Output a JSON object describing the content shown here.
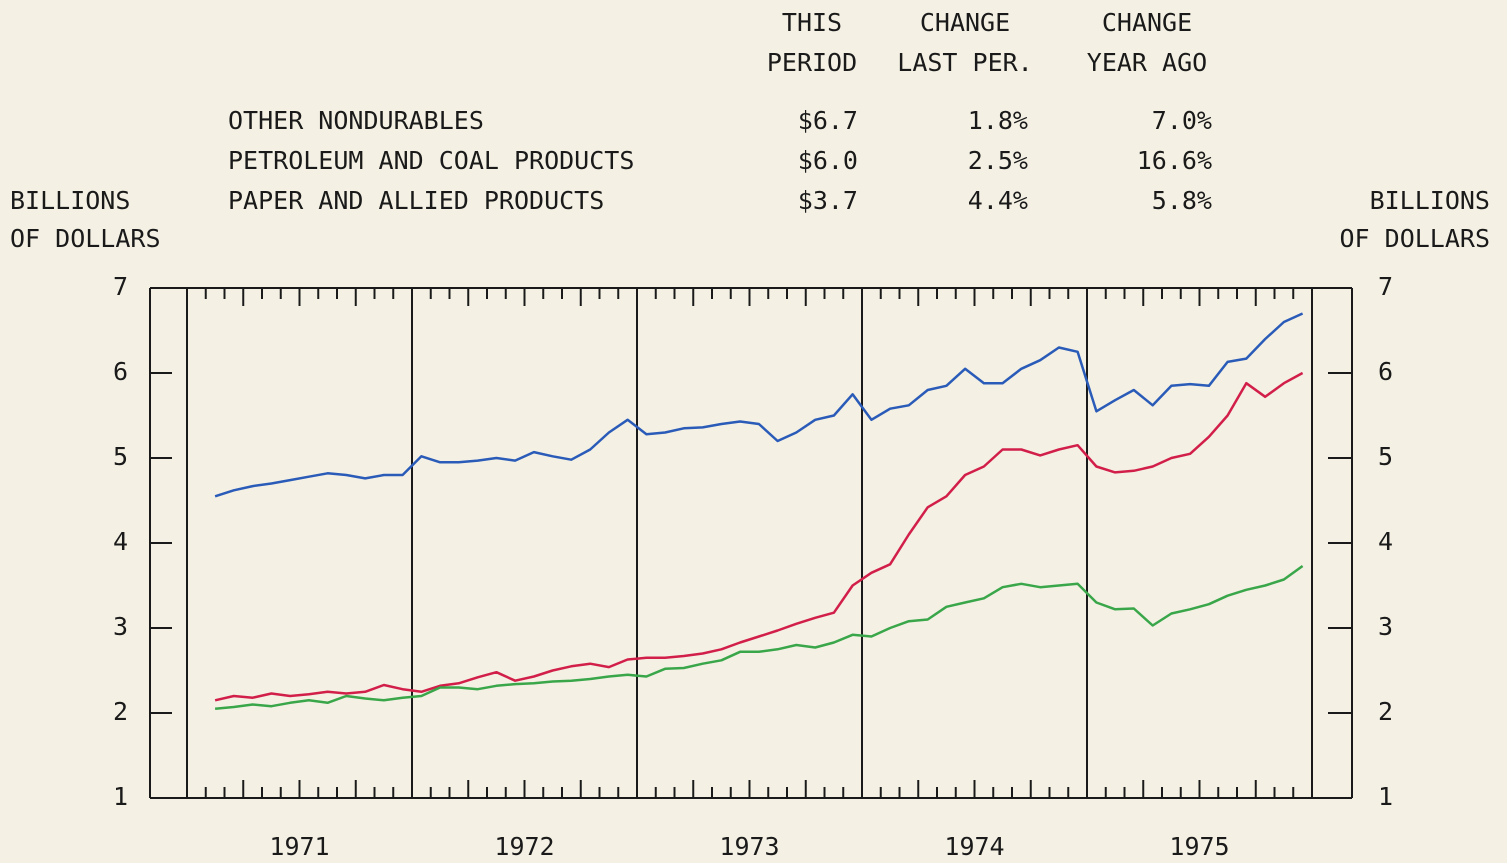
{
  "chart_data": {
    "type": "line",
    "table": {
      "columns": [
        [
          "THIS",
          "PERIOD"
        ],
        [
          "CHANGE",
          "LAST PER."
        ],
        [
          "CHANGE",
          "YEAR AGO"
        ]
      ],
      "rows": [
        [
          "$6.7",
          "1.8%",
          "7.0%"
        ],
        [
          "$6.0",
          "2.5%",
          "16.6%"
        ],
        [
          "$3.7",
          "4.4%",
          "5.8%"
        ]
      ]
    },
    "y_label": [
      "BILLIONS",
      "OF DOLLARS"
    ],
    "y2_label": [
      "BILLIONS",
      "OF DOLLARS"
    ],
    "xlim": [
      1971,
      1976
    ],
    "xticks": [
      {
        "value": 1971.5,
        "label": "1971"
      },
      {
        "value": 1972.5,
        "label": "1972"
      },
      {
        "value": 1973.5,
        "label": "1973"
      },
      {
        "value": 1974.5,
        "label": "1974"
      },
      {
        "value": 1975.5,
        "label": "1975"
      }
    ],
    "xgrid": [
      1972,
      1973,
      1974,
      1975
    ],
    "ylim": [
      1,
      7
    ],
    "yticks": [
      1,
      2,
      3,
      4,
      5,
      6,
      7
    ],
    "y2lim": [
      1,
      7
    ],
    "y2ticks": [
      1,
      2,
      3,
      4,
      5,
      6,
      7
    ],
    "x": [
      1971.125,
      1971.208,
      1971.292,
      1971.375,
      1971.458,
      1971.542,
      1971.625,
      1971.708,
      1971.792,
      1971.875,
      1971.958,
      1972.042,
      1972.125,
      1972.208,
      1972.292,
      1972.375,
      1972.458,
      1972.542,
      1972.625,
      1972.708,
      1972.792,
      1972.875,
      1972.958,
      1973.042,
      1973.125,
      1973.208,
      1973.292,
      1973.375,
      1973.458,
      1973.542,
      1973.625,
      1973.708,
      1973.792,
      1973.875,
      1973.958,
      1974.042,
      1974.125,
      1974.208,
      1974.292,
      1974.375,
      1974.458,
      1974.542,
      1974.625,
      1974.708,
      1974.792,
      1974.875,
      1974.958,
      1975.042,
      1975.125,
      1975.208,
      1975.292,
      1975.375,
      1975.458,
      1975.542,
      1975.625,
      1975.708,
      1975.792,
      1975.875,
      1975.958
    ],
    "series": [
      {
        "name": "OTHER NONDURABLES",
        "color": "#2a5bb8",
        "values": [
          4.55,
          4.62,
          4.67,
          4.7,
          4.74,
          4.78,
          4.82,
          4.8,
          4.76,
          4.8,
          4.8,
          5.02,
          4.95,
          4.95,
          4.97,
          5.0,
          4.97,
          5.07,
          5.02,
          4.98,
          5.1,
          5.3,
          5.45,
          5.28,
          5.3,
          5.35,
          5.36,
          5.4,
          5.43,
          5.4,
          5.2,
          5.3,
          5.45,
          5.5,
          5.75,
          5.45,
          5.58,
          5.62,
          5.8,
          5.85,
          6.05,
          5.88,
          5.88,
          6.05,
          6.15,
          6.3,
          6.25,
          5.55,
          5.68,
          5.8,
          5.62,
          5.85,
          5.87,
          5.85,
          6.13,
          6.17,
          6.4,
          6.6,
          6.7
        ]
      },
      {
        "name": "PETROLEUM AND COAL PRODUCTS",
        "color": "#d21f4a",
        "values": [
          2.15,
          2.2,
          2.18,
          2.23,
          2.2,
          2.22,
          2.25,
          2.23,
          2.25,
          2.33,
          2.28,
          2.25,
          2.32,
          2.35,
          2.42,
          2.48,
          2.38,
          2.43,
          2.5,
          2.55,
          2.58,
          2.54,
          2.63,
          2.65,
          2.65,
          2.67,
          2.7,
          2.75,
          2.83,
          2.9,
          2.97,
          3.05,
          3.12,
          3.18,
          3.5,
          3.65,
          3.75,
          4.1,
          4.42,
          4.55,
          4.8,
          4.9,
          5.1,
          5.1,
          5.03,
          5.1,
          5.15,
          4.9,
          4.83,
          4.85,
          4.9,
          5.0,
          5.05,
          5.25,
          5.5,
          5.88,
          5.72,
          5.88,
          6.0
        ]
      },
      {
        "name": "PAPER AND ALLIED PRODUCTS",
        "color": "#3aa64a",
        "values": [
          2.05,
          2.07,
          2.1,
          2.08,
          2.12,
          2.15,
          2.12,
          2.2,
          2.17,
          2.15,
          2.18,
          2.2,
          2.3,
          2.3,
          2.28,
          2.32,
          2.34,
          2.35,
          2.37,
          2.38,
          2.4,
          2.43,
          2.45,
          2.43,
          2.52,
          2.53,
          2.58,
          2.62,
          2.72,
          2.72,
          2.75,
          2.8,
          2.77,
          2.83,
          2.92,
          2.9,
          3.0,
          3.08,
          3.1,
          3.25,
          3.3,
          3.35,
          3.48,
          3.52,
          3.48,
          3.5,
          3.52,
          3.3,
          3.22,
          3.23,
          3.03,
          3.17,
          3.22,
          3.28,
          3.38,
          3.45,
          3.5,
          3.57,
          3.73
        ]
      }
    ]
  }
}
